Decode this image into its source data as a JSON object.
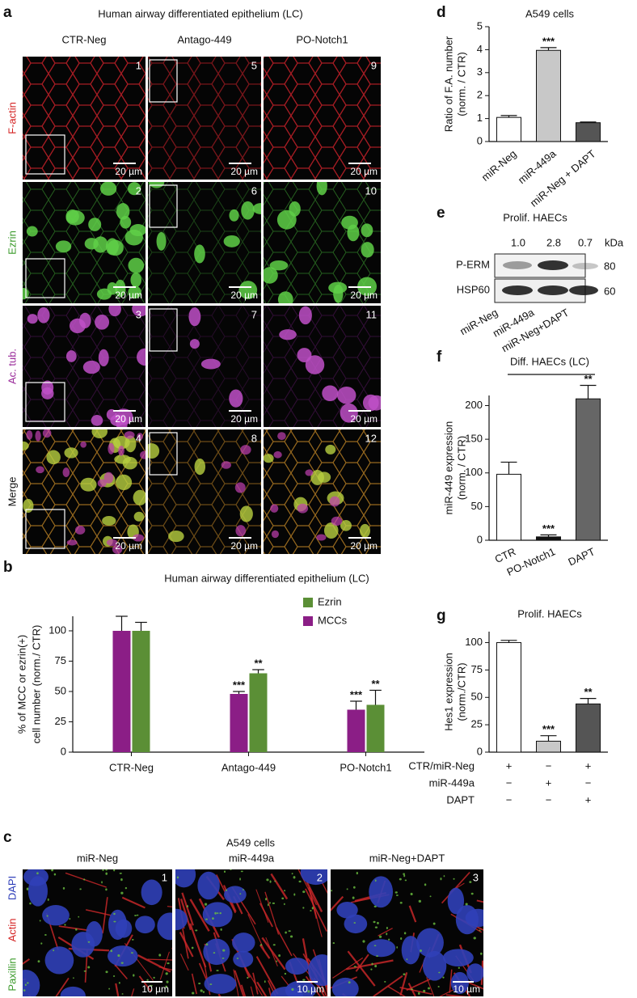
{
  "panels": {
    "a": {
      "label": "a",
      "title": "Human airway differentiated epithelium (LC)",
      "columns": [
        "CTR-Neg",
        "Antago-449",
        "PO-Notch1"
      ],
      "rows": [
        "F-actin",
        "Ezrin",
        "Ac. tub.",
        "Merge"
      ],
      "image_numbers": [
        "1",
        "5",
        "9",
        "2",
        "6",
        "10",
        "3",
        "7",
        "11",
        "4",
        "8",
        "12"
      ],
      "scale_bar": "20 µm"
    },
    "c": {
      "label": "c",
      "title": "A549 cells",
      "columns": [
        "miR-Neg",
        "miR-449a",
        "miR-Neg+DAPT"
      ],
      "rows": [
        "DAPI",
        "Actin",
        "Paxillin"
      ],
      "image_numbers": [
        "1",
        "2",
        "3"
      ],
      "scale_bar": "10 µm"
    },
    "e": {
      "label": "e",
      "title": "Prolif. HAECs",
      "quantification": [
        "1.0",
        "2.8",
        "0.7"
      ],
      "unit": "kDa",
      "bands": [
        {
          "name": "P-ERM",
          "size": "80"
        },
        {
          "name": "HSP60",
          "size": "60"
        }
      ],
      "lanes": [
        "miR-Neg",
        "miR-449a",
        "miR-Neg+DAPT"
      ]
    }
  },
  "chart_data": [
    {
      "type": "bar",
      "panel_label": "b",
      "title": "Human airway differentiated epithelium  (LC)",
      "y_label": [
        "% of MCC or ezrin(+)",
        "cell number (norm./ CTR)"
      ],
      "categories": [
        "CTR-Neg",
        "Antago-449",
        "PO-Notch1"
      ],
      "series": [
        {
          "name": "MCCs",
          "color": "#8b1e86",
          "values": [
            100,
            48,
            35
          ],
          "errors": [
            12,
            2,
            7
          ],
          "significance": [
            null,
            "***",
            "***"
          ]
        },
        {
          "name": "Ezrin",
          "color": "#5b8f36",
          "values": [
            100,
            65,
            39
          ],
          "errors": [
            7,
            3,
            12
          ],
          "significance": [
            null,
            "**",
            "**"
          ]
        }
      ],
      "ylim": [
        0,
        112
      ],
      "yticks": [
        0,
        25,
        50,
        75,
        100
      ],
      "legend": "upper right"
    },
    {
      "type": "bar",
      "panel_label": "d",
      "title": "A549 cells",
      "y_label": [
        "Ratio of F.A. number",
        "(norm. / CTR)"
      ],
      "categories": [
        "miR-Neg",
        "miR-449a",
        "miR-Neg + DAPT"
      ],
      "values": [
        1.05,
        3.97,
        0.82
      ],
      "errors": [
        0.08,
        0.12,
        0.03
      ],
      "significance": [
        null,
        "***",
        null
      ],
      "colors": [
        "#ffffff",
        "#c8c8c8",
        "#555555"
      ],
      "ylim": [
        0,
        5
      ],
      "yticks": [
        0,
        1,
        2,
        3,
        4,
        5
      ]
    },
    {
      "type": "bar",
      "panel_label": "f",
      "title": "Diff. HAECs (LC)",
      "y_label": [
        "miR-449 expression",
        "(norm. / CTR)"
      ],
      "categories": [
        "CTR",
        "PO-Notch1",
        "DAPT"
      ],
      "values": [
        98,
        5,
        210
      ],
      "errors": [
        18,
        3,
        20
      ],
      "significance": [
        null,
        "***",
        "**"
      ],
      "colors": [
        "#ffffff",
        "#111111",
        "#666666"
      ],
      "ylim": [
        0,
        215
      ],
      "yticks": [
        0,
        50,
        100,
        150,
        200
      ]
    },
    {
      "type": "bar",
      "panel_label": "g",
      "title": "Prolif. HAECs",
      "y_label": [
        "Hes1 expression",
        "(norm./CTR)"
      ],
      "categories": [
        null,
        null,
        null
      ],
      "values": [
        100,
        10,
        44
      ],
      "errors": [
        2,
        5,
        5
      ],
      "significance": [
        null,
        "***",
        "**"
      ],
      "colors": [
        "#ffffff",
        "#c8c8c8",
        "#555555"
      ],
      "ylim": [
        0,
        110
      ],
      "yticks": [
        0,
        25,
        50,
        75,
        100
      ],
      "treatment_rows": [
        {
          "label": "CTR/miR-Neg",
          "marks": [
            "+",
            "−",
            "+"
          ]
        },
        {
          "label": "miR-449a",
          "marks": [
            "−",
            "+",
            "−"
          ]
        },
        {
          "label": "DAPT",
          "marks": [
            "−",
            "−",
            "+"
          ]
        }
      ]
    }
  ]
}
